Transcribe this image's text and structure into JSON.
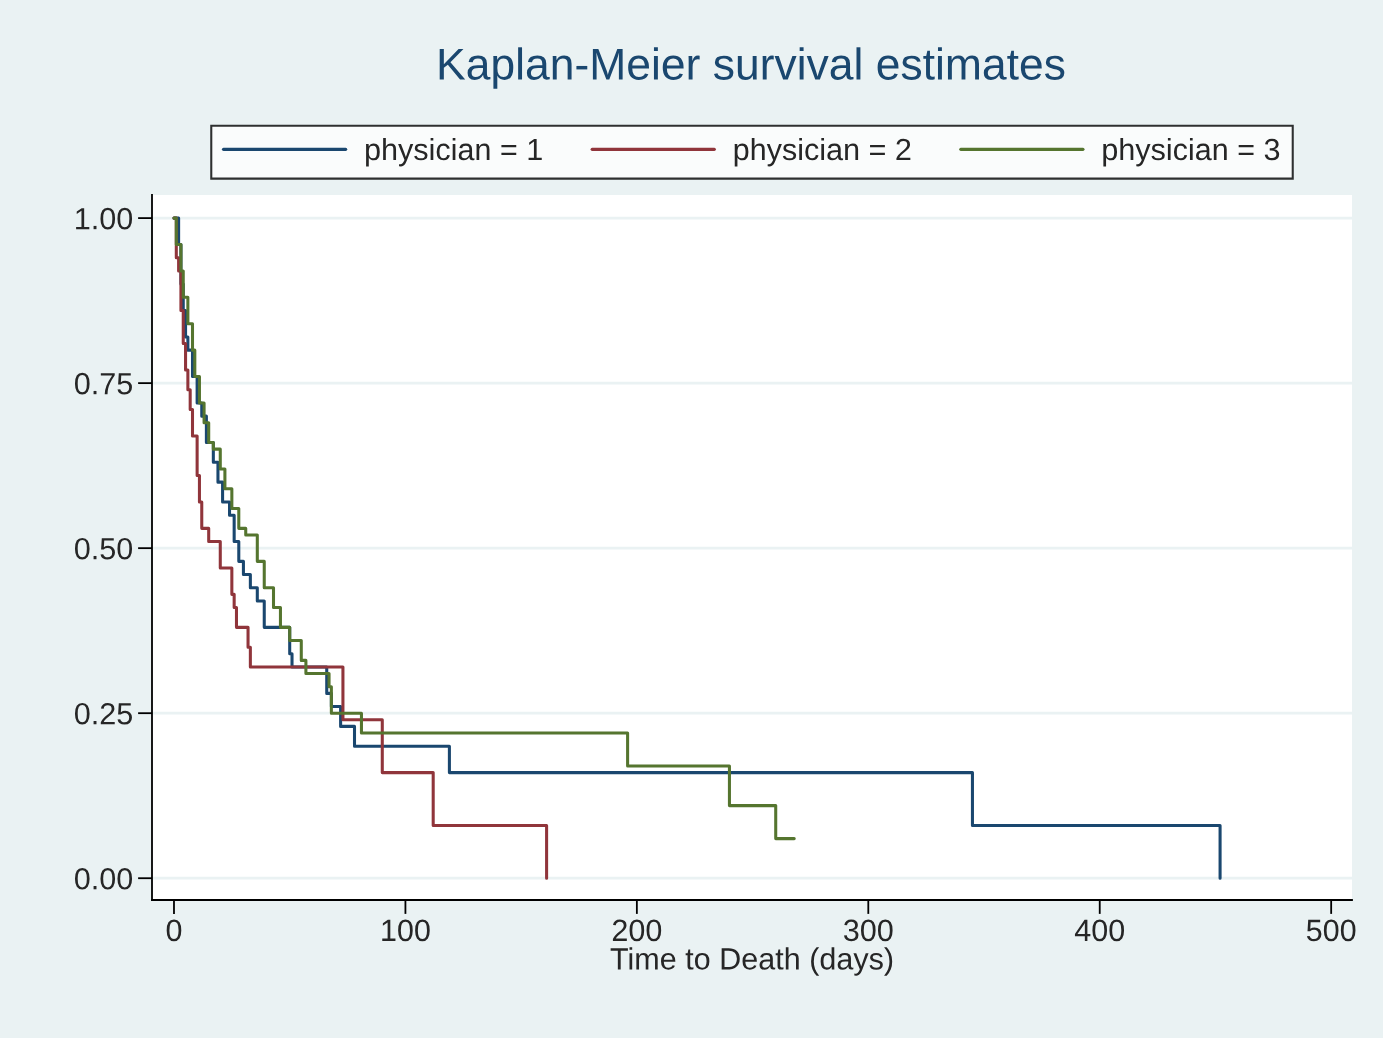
{
  "chart_data": {
    "type": "step",
    "title": "Kaplan-Meier survival estimates",
    "xlabel": "Time to Death (days)",
    "series": [
      {
        "name": "physician = 1",
        "color": "#1a476f",
        "x": [
          0,
          2,
          3,
          4,
          5,
          6,
          8,
          10,
          12,
          14,
          17,
          19,
          21,
          24,
          26,
          28,
          30,
          33,
          36,
          39,
          50,
          51,
          66,
          68,
          72,
          78,
          119,
          345,
          452
        ],
        "values": [
          1,
          0.96,
          0.9,
          0.86,
          0.82,
          0.8,
          0.76,
          0.72,
          0.7,
          0.66,
          0.63,
          0.6,
          0.57,
          0.55,
          0.51,
          0.48,
          0.46,
          0.44,
          0.42,
          0.38,
          0.34,
          0.32,
          0.28,
          0.26,
          0.23,
          0.2,
          0.16,
          0.08,
          0
        ]
      },
      {
        "name": "physician = 2",
        "color": "#90353b",
        "x": [
          0,
          1,
          2,
          3,
          4,
          5,
          6,
          7,
          8,
          10,
          11,
          12,
          15,
          20,
          25,
          26,
          27,
          32,
          33,
          73,
          90,
          112,
          161
        ],
        "values": [
          1,
          0.94,
          0.92,
          0.86,
          0.81,
          0.77,
          0.74,
          0.71,
          0.67,
          0.61,
          0.57,
          0.53,
          0.51,
          0.47,
          0.43,
          0.41,
          0.38,
          0.35,
          0.32,
          0.24,
          0.16,
          0.08,
          0
        ]
      },
      {
        "name": "physician = 3",
        "color": "#55752f",
        "x": [
          0,
          1,
          3,
          4,
          6,
          8,
          9,
          11,
          13,
          15,
          17,
          20,
          22,
          25,
          28,
          31,
          36,
          39,
          43,
          46,
          50,
          55,
          57,
          67,
          68,
          81,
          196,
          240,
          260,
          268
        ],
        "values": [
          1,
          0.96,
          0.92,
          0.88,
          0.84,
          0.8,
          0.76,
          0.72,
          0.69,
          0.66,
          0.65,
          0.62,
          0.59,
          0.56,
          0.53,
          0.52,
          0.48,
          0.44,
          0.41,
          0.38,
          0.36,
          0.33,
          0.31,
          0.29,
          0.25,
          0.22,
          0.17,
          0.11,
          0.06,
          0.06
        ]
      }
    ],
    "xlim": [
      -9.5,
      509
    ],
    "xticks": [
      0,
      100,
      200,
      300,
      400,
      500
    ],
    "ylim": [
      -0.033,
      1.035
    ],
    "yticks": [
      {
        "value": 0,
        "label": "0.00"
      },
      {
        "value": 0.25,
        "label": "0.25"
      },
      {
        "value": 0.5,
        "label": "0.50"
      },
      {
        "value": 0.75,
        "label": "0.75"
      },
      {
        "value": 1,
        "label": "1.00"
      }
    ],
    "grid": "y",
    "legend": "top"
  }
}
